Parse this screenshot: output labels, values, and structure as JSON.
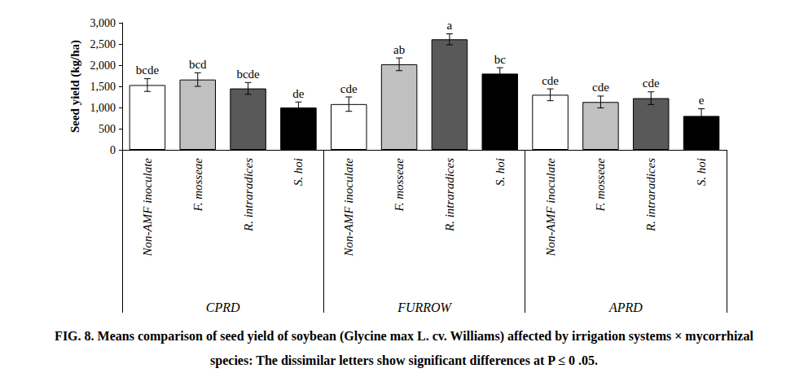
{
  "chart_data": {
    "type": "bar",
    "title": "FIG. 8. Means comparison of seed yield of soybean (Glycine max L. cv. Williams) affected by irrigation systems × mycorrhizal species: The dissimilar letters show significant differences at P ≤ 0 .05.",
    "y_label": "Seed yield (kg/ha)",
    "categories": [
      "Non-AMF inoculate",
      "F. mosseae",
      "R. intraradices",
      "S. hoi",
      "Non-AMF inoculate",
      "F. mosseae",
      "R. intraradices",
      "S. hoi",
      "Non-AMF inoculate",
      "F. mosseae",
      "R. intraradices",
      "S. hoi"
    ],
    "groups": [
      "CPRD",
      "FURROW",
      "APRD"
    ],
    "values": [
      1530,
      1660,
      1450,
      1000,
      1080,
      2020,
      2610,
      1800,
      1300,
      1130,
      1220,
      800
    ],
    "errors": [
      150,
      160,
      140,
      130,
      170,
      150,
      130,
      140,
      140,
      140,
      150,
      170
    ],
    "annotations": [
      "bcde",
      "bcd",
      "bcde",
      "de",
      "cde",
      "ab",
      "a",
      "bc",
      "cde",
      "cde",
      "cde",
      "e"
    ],
    "colors": [
      "#ffffff",
      "#c0c0c0",
      "#595959",
      "#000000",
      "#ffffff",
      "#c0c0c0",
      "#595959",
      "#000000",
      "#ffffff",
      "#c0c0c0",
      "#595959",
      "#000000"
    ],
    "ylim": [
      0,
      3000
    ],
    "yticks": [
      0,
      500,
      1000,
      1500,
      2000,
      2500,
      3000
    ],
    "grid": false
  }
}
